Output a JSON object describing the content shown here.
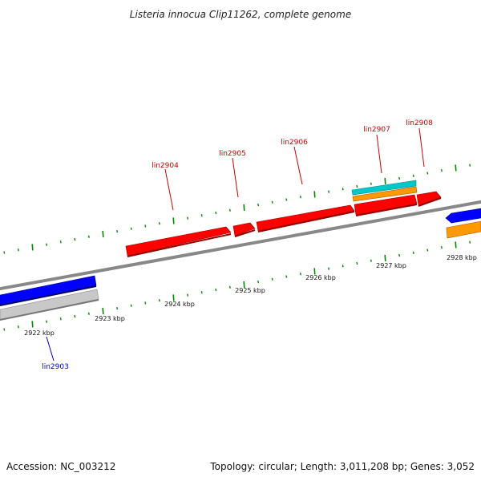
{
  "title": "Listeria innocua Clip11262, complete genome",
  "footer": {
    "accession": "Accession: NC_003212",
    "summary": "Topology: circular; Length: 3,011,208 bp; Genes: 3,052"
  },
  "colors": {
    "background": "#ffffff",
    "forward_gene": "#ff0000",
    "reverse_gene": "#0000ff",
    "grey_feature": "#c8c8c8",
    "cyan_feature": "#00c8c8",
    "orange_feature": "#ff9900",
    "tick_mark": "#008800",
    "backbone": "#888888",
    "label_forward": "#cc0000",
    "label_reverse": "#0000cc"
  },
  "axis": {
    "unit": "kbp",
    "labels": [
      "2922 kbp",
      "2923 kbp",
      "2924 kbp",
      "2925 kbp",
      "2926 kbp",
      "2927 kbp",
      "2928 kbp"
    ]
  },
  "genes": [
    {
      "label": "lin2903",
      "strand": "reverse"
    },
    {
      "label": "lin2904",
      "strand": "forward"
    },
    {
      "label": "lin2905",
      "strand": "forward"
    },
    {
      "label": "lin2906",
      "strand": "forward"
    },
    {
      "label": "lin2907",
      "strand": "forward"
    },
    {
      "label": "lin2908",
      "strand": "forward"
    }
  ]
}
